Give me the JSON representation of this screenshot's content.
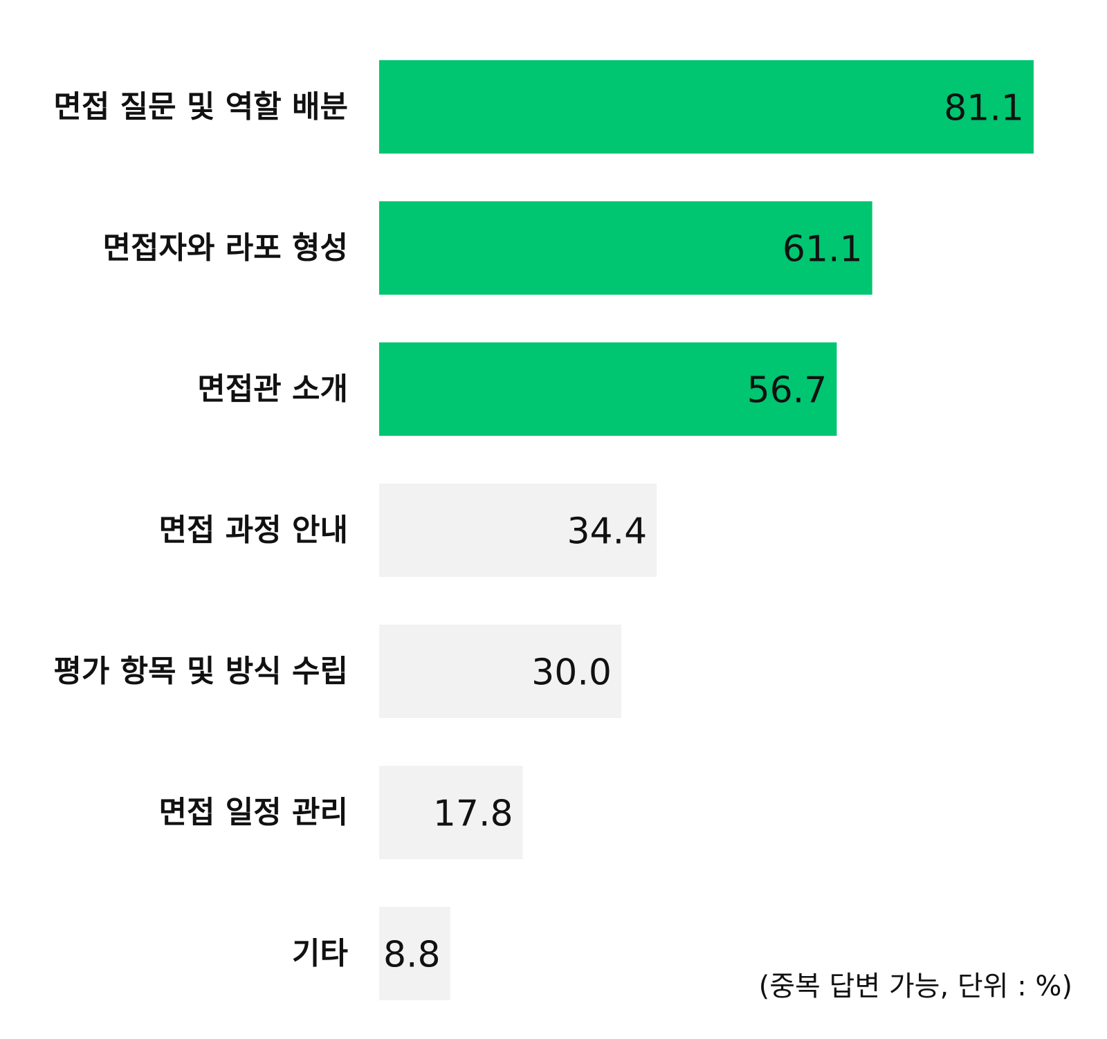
{
  "chart_data": {
    "type": "bar",
    "orientation": "horizontal",
    "categories": [
      "면접 질문 및 역할 배분",
      "면접자와 라포 형성",
      "면접관 소개",
      "면접 과정 안내",
      "평가 항목 및 방식 수립",
      "면접 일정 관리",
      "기타"
    ],
    "values": [
      81.1,
      61.1,
      56.7,
      34.4,
      30.0,
      17.8,
      8.8
    ],
    "value_labels": [
      "81.1",
      "61.1",
      "56.7",
      "34.4",
      "30.0",
      "17.8",
      "8.8"
    ],
    "highlighted_count": 3,
    "highlight_color": "#00c571",
    "base_color": "#f2f2f2",
    "xlim": [
      0,
      81.1
    ],
    "grid": false,
    "legend": "none"
  },
  "note": "(중복 답변 가능, 단위 : %)"
}
